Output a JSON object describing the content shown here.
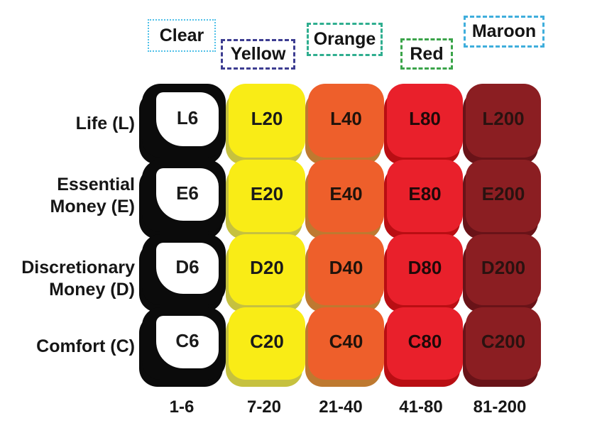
{
  "figure": {
    "background": "#FFFFFF"
  },
  "columns": [
    {
      "name": "Clear",
      "range": "1-6",
      "header_border_color": "#4FC0E8",
      "header_border_style": "dotted",
      "fill": "#FFFFFF",
      "frame": "#0B0B0B",
      "shadow": "#0B0B0B",
      "text_color": "#1A1A1A"
    },
    {
      "name": "Yellow",
      "range": "7-20",
      "header_border_color": "#3D3D91",
      "header_border_style": "dashed",
      "fill": "#F9EC16",
      "shadow": "#C6C13F",
      "text_color": "#1A1A1A"
    },
    {
      "name": "Orange",
      "range": "21-40",
      "header_border_color": "#2FAE8F",
      "header_border_style": "dashed",
      "fill": "#EE5F2B",
      "shadow": "#BE7930",
      "text_color": "#20130B"
    },
    {
      "name": "Red",
      "range": "41-80",
      "header_border_color": "#3BA44A",
      "header_border_style": "dashed",
      "fill": "#E9202B",
      "shadow": "#B90E13",
      "text_color": "#200909"
    },
    {
      "name": "Maroon",
      "range": "81-200",
      "header_border_color": "#3FAEDC",
      "header_border_style": "dashed",
      "fill": "#8B1E22",
      "shadow": "#691318",
      "text_color": "#2A1210"
    }
  ],
  "rows": [
    {
      "label": "Life (L)",
      "cells": [
        "L6",
        "L20",
        "L40",
        "L80",
        "L200"
      ]
    },
    {
      "label": "Essential\nMoney (E)",
      "cells": [
        "E6",
        "E20",
        "E40",
        "E80",
        "E200"
      ]
    },
    {
      "label": "Discretionary\nMoney (D)",
      "cells": [
        "D6",
        "D20",
        "D40",
        "D80",
        "D200"
      ]
    },
    {
      "label": "Comfort (C)",
      "cells": [
        "C6",
        "C20",
        "C40",
        "C80",
        "C200"
      ]
    }
  ],
  "chart_data": {
    "type": "table",
    "row_categories": [
      "Life (L)",
      "Essential Money (E)",
      "Discretionary Money (D)",
      "Comfort (C)"
    ],
    "column_categories": [
      "Clear",
      "Yellow",
      "Orange",
      "Red",
      "Maroon"
    ],
    "column_ranges": [
      "1-6",
      "7-20",
      "21-40",
      "41-80",
      "81-200"
    ],
    "cells": [
      [
        "L6",
        "L20",
        "L40",
        "L80",
        "L200"
      ],
      [
        "E6",
        "E20",
        "E40",
        "E80",
        "E200"
      ],
      [
        "D6",
        "D20",
        "D40",
        "D80",
        "D200"
      ],
      [
        "C6",
        "C20",
        "C40",
        "C80",
        "C200"
      ]
    ],
    "cell_colors": [
      "#FFFFFF",
      "#F9EC16",
      "#EE5F2B",
      "#E9202B",
      "#8B1E22"
    ]
  }
}
